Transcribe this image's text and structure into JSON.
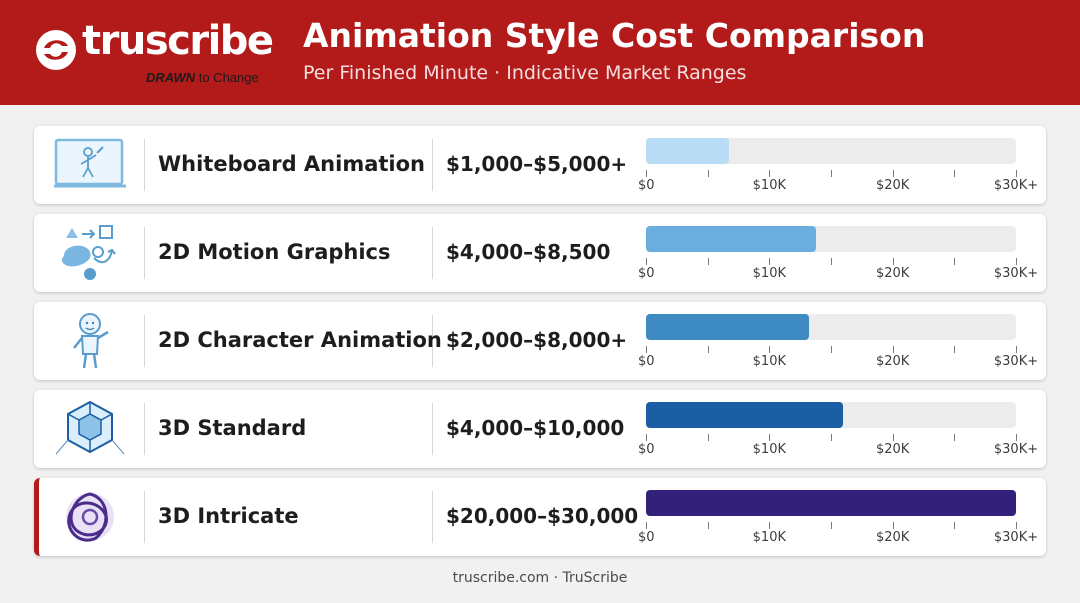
{
  "brand": {
    "name": "truscribe",
    "tagline_bold": "DRAWN",
    "tagline_rest": " to Change",
    "primary_color": "#b31b1b"
  },
  "header": {
    "title": "Animation Style Cost Comparison",
    "subtitle": "Per Finished Minute · Indicative Market Ranges"
  },
  "chart_data": {
    "type": "bar",
    "orientation": "horizontal-range",
    "title": "Animation Style Cost Comparison",
    "subtitle": "Per Finished Minute · Indicative Market Ranges",
    "xlim": [
      0,
      30000
    ],
    "tick_values": [
      0,
      10000,
      20000,
      30000
    ],
    "tick_labels": [
      "$0",
      "$10K",
      "$20K",
      "$30K+"
    ],
    "categories": [
      "Whiteboard Animation",
      "2D Motion Graphics",
      "2D Character Animation",
      "3D Standard",
      "3D Intricate"
    ],
    "range_labels": [
      "$1,000–$5,000+",
      "$4,000–$8,500",
      "$2,000–$8,000+",
      "$4,000–$10,000",
      "$20,000–$30,000"
    ],
    "ranges": [
      [
        1000,
        5000
      ],
      [
        4000,
        8500
      ],
      [
        2000,
        8000
      ],
      [
        4000,
        10000
      ],
      [
        20000,
        30000
      ]
    ],
    "bar_values": [
      6700,
      13800,
      13200,
      16000,
      30000
    ],
    "colors": [
      "#b9dcf5",
      "#6aaedf",
      "#3d8bc2",
      "#1c5ea3",
      "#33207a"
    ],
    "icons": [
      "whiteboard-icon",
      "motion-shapes-icon",
      "character-icon",
      "wireframe-cube-icon",
      "intricate-knot-icon"
    ],
    "highlight_index": 4,
    "grid": false
  },
  "footer": {
    "text": "truscribe.com · TruScribe"
  }
}
